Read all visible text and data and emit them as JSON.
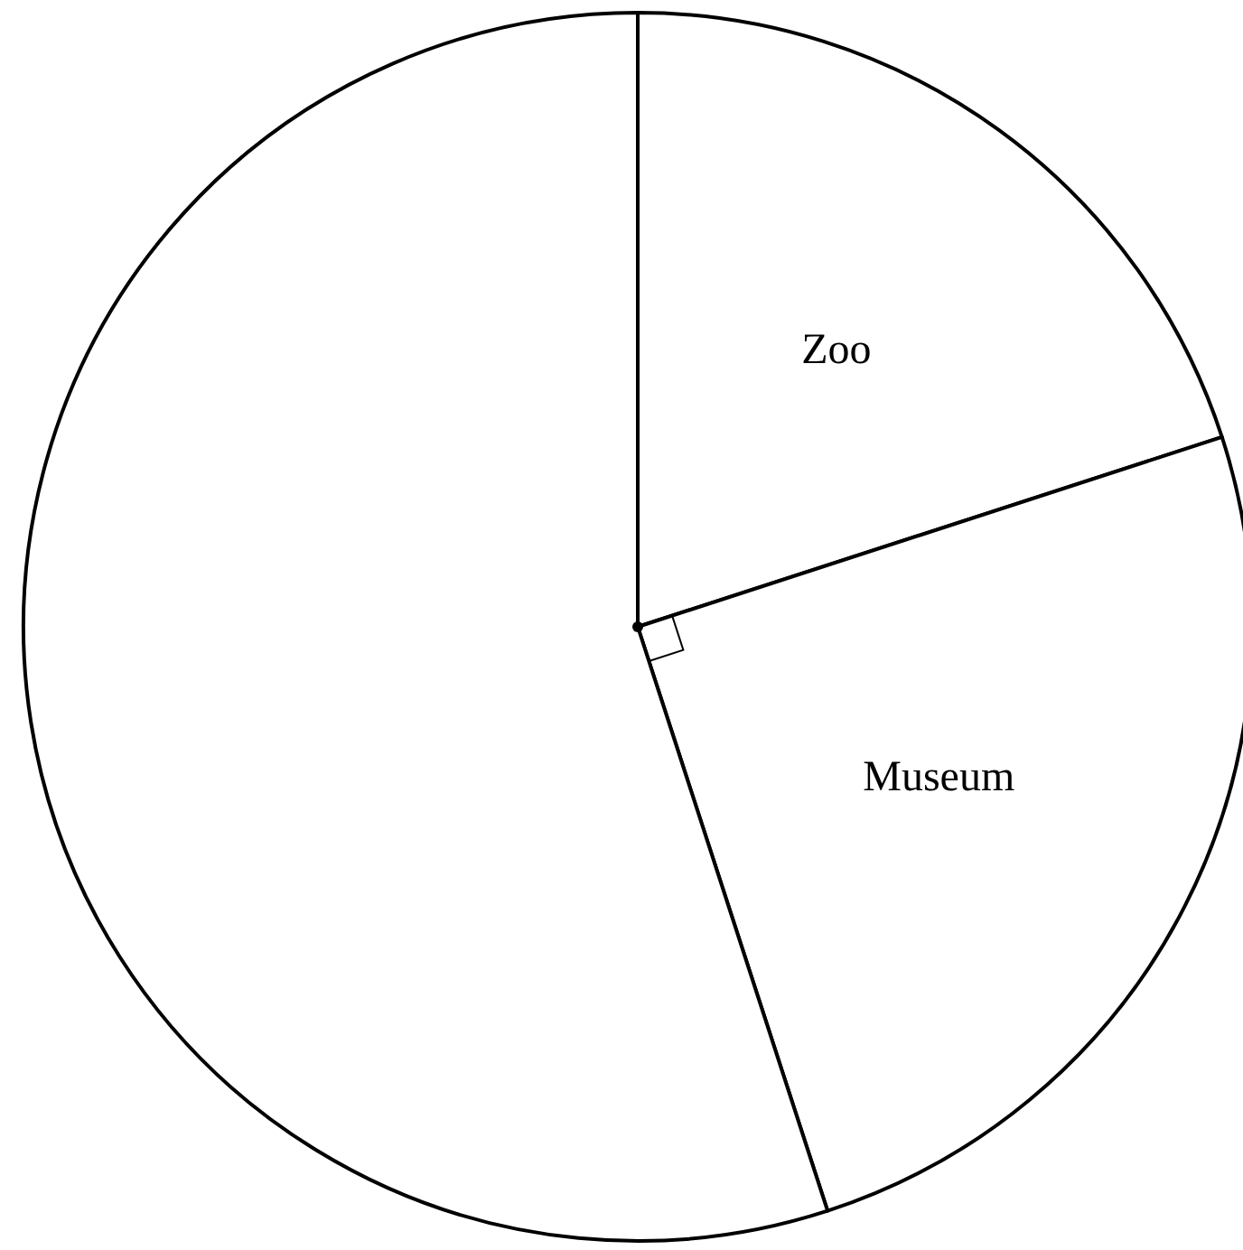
{
  "chart_data": {
    "type": "pie",
    "categories": [
      "Zoo",
      "Museum",
      null
    ],
    "values": [
      20,
      25,
      55
    ],
    "colors": [
      "#ffffff",
      "#ffffff",
      "#ffffff"
    ]
  }
}
